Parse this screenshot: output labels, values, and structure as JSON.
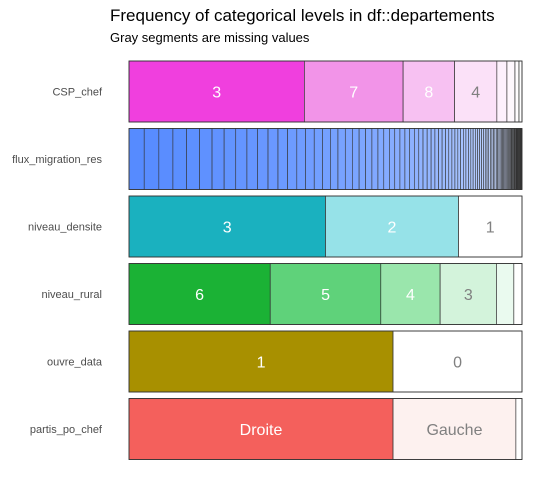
{
  "chart_data": {
    "type": "bar",
    "orientation": "horizontal-stacked-proportion",
    "title": "Frequency of categorical levels in df::departements",
    "subtitle": "Gray segments are missing values",
    "xlabel": "",
    "ylabel": "",
    "legend": "none",
    "grid": false,
    "variables": [
      {
        "name": "CSP_chef",
        "segments": [
          {
            "label": "3",
            "proportion": 0.4462,
            "fill": "#f03fde",
            "text_color": "#ffffff"
          },
          {
            "label": "7",
            "proportion": 0.2513,
            "fill": "#f294e8",
            "text_color": "#ffffff"
          },
          {
            "label": "8",
            "proportion": 0.1308,
            "fill": "#f7c1f2",
            "text_color": "#ffffff"
          },
          {
            "label": "4",
            "proportion": 0.1077,
            "fill": "#fbe1f8",
            "text_color": "#808080"
          },
          {
            "label": "",
            "proportion": 0.0256,
            "fill": "#fdf0fc",
            "text_color": "#808080"
          },
          {
            "label": "",
            "proportion": 0.0205,
            "fill": "#fef7fd",
            "text_color": "#808080"
          },
          {
            "label": "",
            "proportion": 0.0103,
            "fill": "#fffcfe",
            "text_color": "#808080"
          },
          {
            "label": "",
            "proportion": 0.0076,
            "fill": "#ffffff",
            "text_color": "#808080"
          }
        ]
      },
      {
        "name": "flux_migration_res",
        "many_levels": true,
        "levels_count": 96,
        "color_start": "#568bff",
        "color_end": "#ffffff",
        "segments": []
      },
      {
        "name": "niveau_densite",
        "segments": [
          {
            "label": "3",
            "proportion": 0.5,
            "fill": "#1ab1bf",
            "text_color": "#ffffff"
          },
          {
            "label": "2",
            "proportion": 0.3385,
            "fill": "#96e2e8",
            "text_color": "#ffffff"
          },
          {
            "label": "1",
            "proportion": 0.1615,
            "fill": "#ffffff",
            "text_color": "#808080"
          }
        ]
      },
      {
        "name": "niveau_rural",
        "segments": [
          {
            "label": "6",
            "proportion": 0.3594,
            "fill": "#1bb235",
            "text_color": "#ffffff"
          },
          {
            "label": "5",
            "proportion": 0.2813,
            "fill": "#5fd27a",
            "text_color": "#ffffff"
          },
          {
            "label": "4",
            "proportion": 0.151,
            "fill": "#9ae6ac",
            "text_color": "#ffffff"
          },
          {
            "label": "3",
            "proportion": 0.1432,
            "fill": "#d3f3db",
            "text_color": "#808080"
          },
          {
            "label": "",
            "proportion": 0.0443,
            "fill": "#eafaef",
            "text_color": "#808080"
          },
          {
            "label": "",
            "proportion": 0.0208,
            "fill": "#ffffff",
            "text_color": "#808080"
          }
        ]
      },
      {
        "name": "ouvre_data",
        "segments": [
          {
            "label": "1",
            "proportion": 0.6719,
            "fill": "#a89000",
            "text_color": "#ffffff"
          },
          {
            "label": "0",
            "proportion": 0.3281,
            "fill": "#ffffff",
            "text_color": "#808080"
          }
        ]
      },
      {
        "name": "partis_po_chef",
        "segments": [
          {
            "label": "Droite",
            "proportion": 0.6719,
            "fill": "#f4605c",
            "text_color": "#ffffff"
          },
          {
            "label": "Gauche",
            "proportion": 0.3125,
            "fill": "#fdf1ef",
            "text_color": "#808080"
          },
          {
            "label": "",
            "proportion": 0.0156,
            "fill": "#ffffff",
            "text_color": "#808080"
          }
        ]
      }
    ]
  }
}
